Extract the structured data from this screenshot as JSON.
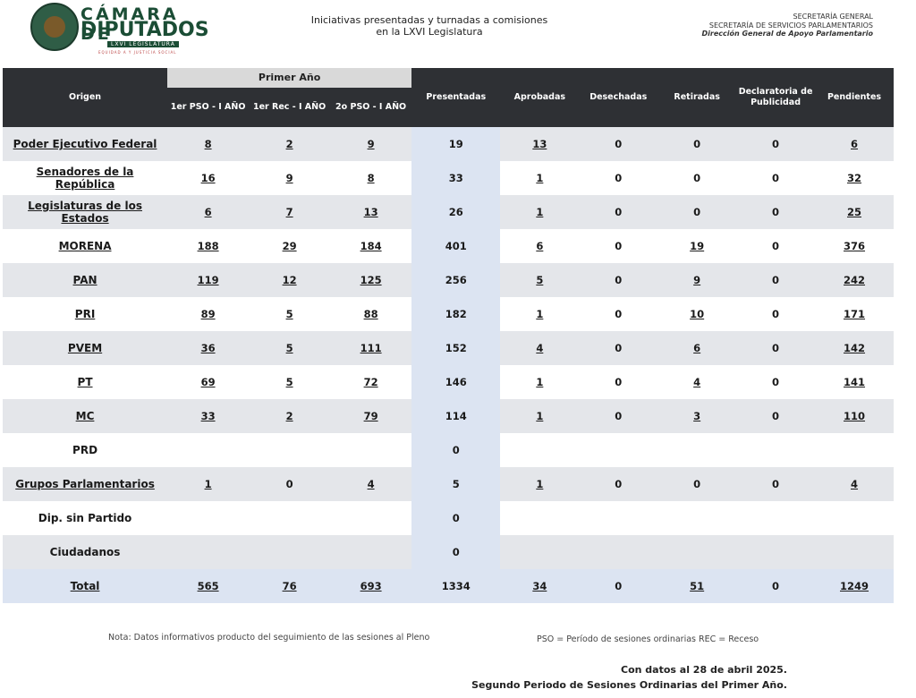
{
  "header": {
    "logo_line1": "CÁMARA DE",
    "logo_line2": "DIPUTADOS",
    "logo_line3": "LXVI LEGISLATURA",
    "logo_line4": "EQUIDAD A Y JUSTICIA SOCIAL",
    "title_line1": "Iniciativas presentadas y turnadas a comisiones",
    "title_line2": "en la LXVI Legislatura",
    "right_line1": "SECRETARÍA GENERAL",
    "right_line2": "SECRETARÍA DE SERVICIOS PARLAMENTARIOS",
    "right_line3": "Dirección General de Apoyo Parlamentario"
  },
  "table": {
    "group_label": "Primer Año",
    "columns": {
      "origen": "Origen",
      "p1": "1er PSO - I AÑO",
      "p2": "1er Rec - I AÑO",
      "p3": "2o PSO - I AÑO",
      "presentadas": "Presentadas",
      "aprobadas": "Aprobadas",
      "desechadas": "Desechadas",
      "retiradas": "Retiradas",
      "declaratoria": "Declaratoria de Publicidad",
      "pendientes": "Pendientes"
    },
    "rows": [
      {
        "origen": "Poder Ejecutivo Federal",
        "p1": "8",
        "p2": "2",
        "p3": "9",
        "presentadas": "19",
        "aprobadas": "13",
        "desechadas": "0",
        "retiradas": "0",
        "declaratoria": "0",
        "pendientes": "6"
      },
      {
        "origen": "Senadores de la República",
        "p1": "16",
        "p2": "9",
        "p3": "8",
        "presentadas": "33",
        "aprobadas": "1",
        "desechadas": "0",
        "retiradas": "0",
        "declaratoria": "0",
        "pendientes": "32"
      },
      {
        "origen": "Legislaturas de los Estados",
        "p1": "6",
        "p2": "7",
        "p3": "13",
        "presentadas": "26",
        "aprobadas": "1",
        "desechadas": "0",
        "retiradas": "0",
        "declaratoria": "0",
        "pendientes": "25"
      },
      {
        "origen": "MORENA",
        "p1": "188",
        "p2": "29",
        "p3": "184",
        "presentadas": "401",
        "aprobadas": "6",
        "desechadas": "0",
        "retiradas": "19",
        "declaratoria": "0",
        "pendientes": "376"
      },
      {
        "origen": "PAN",
        "p1": "119",
        "p2": "12",
        "p3": "125",
        "presentadas": "256",
        "aprobadas": "5",
        "desechadas": "0",
        "retiradas": "9",
        "declaratoria": "0",
        "pendientes": "242"
      },
      {
        "origen": "PRI",
        "p1": "89",
        "p2": "5",
        "p3": "88",
        "presentadas": "182",
        "aprobadas": "1",
        "desechadas": "0",
        "retiradas": "10",
        "declaratoria": "0",
        "pendientes": "171"
      },
      {
        "origen": "PVEM",
        "p1": "36",
        "p2": "5",
        "p3": "111",
        "presentadas": "152",
        "aprobadas": "4",
        "desechadas": "0",
        "retiradas": "6",
        "declaratoria": "0",
        "pendientes": "142"
      },
      {
        "origen": "PT",
        "p1": "69",
        "p2": "5",
        "p3": "72",
        "presentadas": "146",
        "aprobadas": "1",
        "desechadas": "0",
        "retiradas": "4",
        "declaratoria": "0",
        "pendientes": "141"
      },
      {
        "origen": "MC",
        "p1": "33",
        "p2": "2",
        "p3": "79",
        "presentadas": "114",
        "aprobadas": "1",
        "desechadas": "0",
        "retiradas": "3",
        "declaratoria": "0",
        "pendientes": "110"
      },
      {
        "origen": "PRD",
        "p1": "",
        "p2": "",
        "p3": "",
        "presentadas": "0",
        "aprobadas": "",
        "desechadas": "",
        "retiradas": "",
        "declaratoria": "",
        "pendientes": ""
      },
      {
        "origen": "Grupos Parlamentarios",
        "p1": "1",
        "p2": "0",
        "p3": "4",
        "presentadas": "5",
        "aprobadas": "1",
        "desechadas": "0",
        "retiradas": "0",
        "declaratoria": "0",
        "pendientes": "4"
      },
      {
        "origen": "Dip. sin Partido",
        "p1": "",
        "p2": "",
        "p3": "",
        "presentadas": "0",
        "aprobadas": "",
        "desechadas": "",
        "retiradas": "",
        "declaratoria": "",
        "pendientes": ""
      },
      {
        "origen": "Ciudadanos",
        "p1": "",
        "p2": "",
        "p3": "",
        "presentadas": "0",
        "aprobadas": "",
        "desechadas": "",
        "retiradas": "",
        "declaratoria": "",
        "pendientes": ""
      }
    ],
    "total": {
      "origen": "Total",
      "p1": "565",
      "p2": "76",
      "p3": "693",
      "presentadas": "1334",
      "aprobadas": "34",
      "desechadas": "0",
      "retiradas": "51",
      "declaratoria": "0",
      "pendientes": "1249"
    }
  },
  "footer": {
    "note": "Nota: Datos informativos producto del seguimiento de las sesiones al Pleno",
    "legend": "PSO = Período de sesiones ordinarias REC = Receso",
    "date_line1": "Con datos al 28 de abril 2025.",
    "date_line2": "Segundo Periodo de Sesiones Ordinarias del Primer Año."
  }
}
